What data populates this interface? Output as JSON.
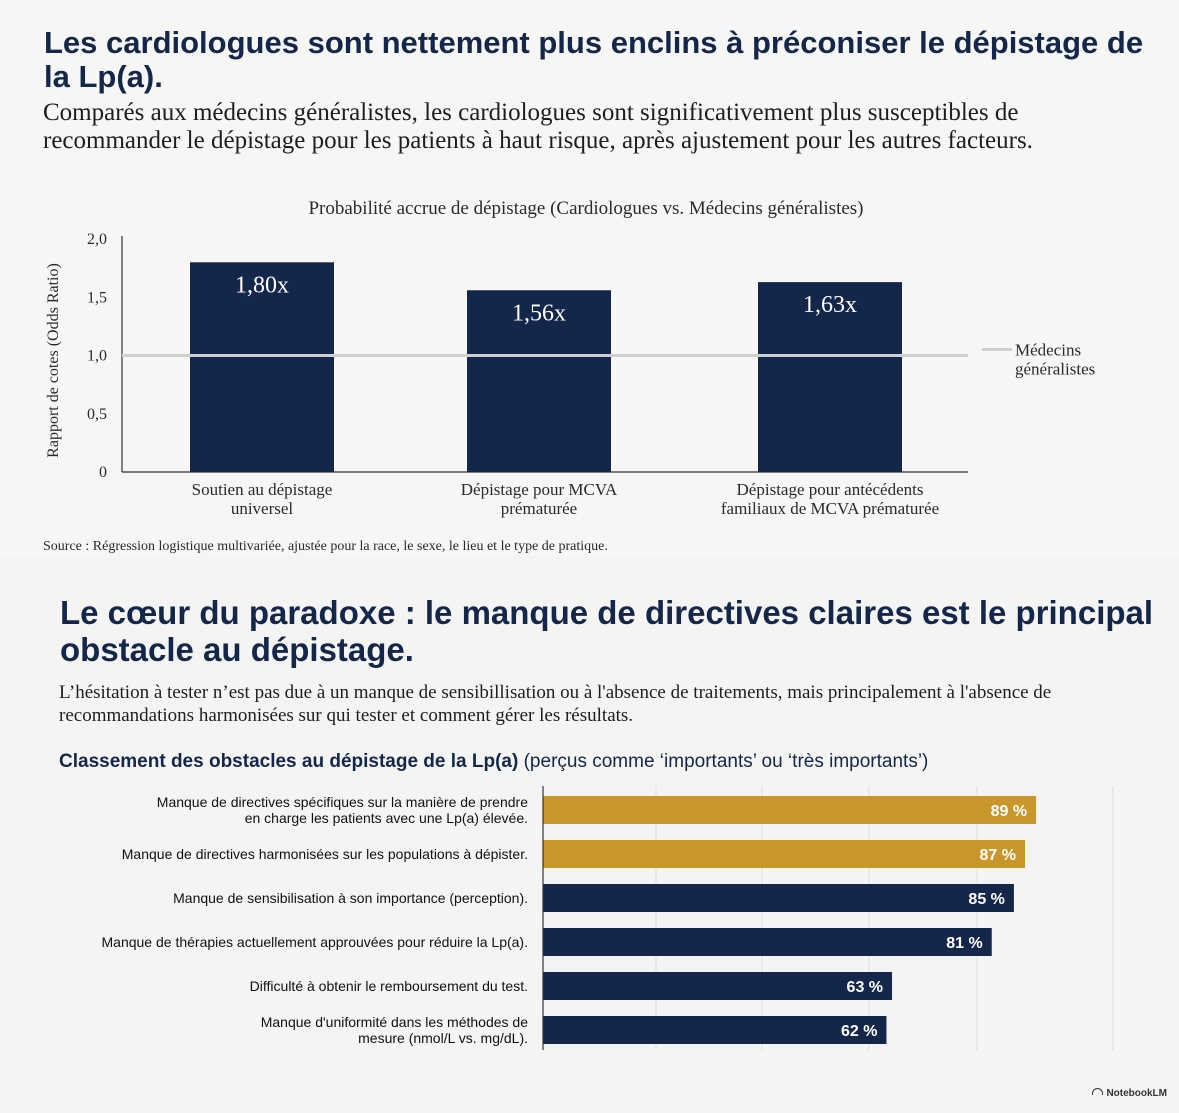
{
  "panel1": {
    "title": "Les cardiologues sont nettement plus enclins à préconiser le dépistage de la Lp(a).",
    "subtitle": "Comparés aux médecins généralistes, les cardiologues sont significativement plus susceptibles de recommander le dépistage pour les patients à haut risque, après ajustement pour les autres facteurs.",
    "source": "Source : Régression logistique multivariée, ajustée pour la race, le sexe, le lieu et le type de pratique."
  },
  "panel2": {
    "title": "Le cœur du paradoxe : le manque de directives claires est le principal obstacle au dépistage.",
    "subtitle": "L’hésitation à tester n’est pas due à un manque de sensibillisation ou à l'absence de traitements, mais principalement à l'absence de recommandations harmonisées sur qui tester et comment gérer les résultats.",
    "chart_title": "Classement des obstacles au dépistage de la Lp(a)",
    "chart_subtitle": "(perçus comme ‘importants’ ou ‘très importants’)"
  },
  "brand": "NotebookLM",
  "colors": {
    "navy": "#14264a",
    "gold": "#c9962b",
    "reference": "#cfcfcf"
  },
  "chart_data": [
    {
      "type": "bar",
      "title": "Probabilité accrue de dépistage (Cardiologues vs. Médecins généralistes)",
      "ylabel": "Rapport de cotes (Odds Ratio)",
      "xlabel": "",
      "categories": [
        [
          "Soutien au dépistage",
          "universel"
        ],
        [
          "Dépistage pour MCVA",
          "prématurée"
        ],
        [
          "Dépistage pour antécédents",
          "familiaux de MCVA prématurée"
        ]
      ],
      "values": [
        1.8,
        1.56,
        1.63
      ],
      "value_labels": [
        "1,80x",
        "1,56x",
        "1,63x"
      ],
      "ylim": [
        0,
        2.0
      ],
      "yticks": [
        0,
        0.5,
        1.0,
        1.5,
        2.0
      ],
      "ytick_labels": [
        "0",
        "0,5",
        "1,0",
        "1,5",
        "2,0"
      ],
      "reference_line": {
        "value": 1.0,
        "label": [
          "Médecins",
          "généralistes"
        ]
      },
      "grid": false
    },
    {
      "type": "bar",
      "orientation": "horizontal",
      "title": "Classement des obstacles au dépistage de la Lp(a) (perçus comme ‘importants’ ou ‘très importants’)",
      "categories": [
        [
          "Manque de directives spécifiques sur la manière de prendre",
          "en charge les patients avec une Lp(a) élevée."
        ],
        [
          "Manque de directives harmonisées sur les populations à dépister."
        ],
        [
          "Manque de sensibilisation à son importance (perception)."
        ],
        [
          "Manque de thérapies actuellement approuvées pour réduire la Lp(a)."
        ],
        [
          "Difficulté à obtenir le remboursement du test."
        ],
        [
          "Manque d'uniformité dans les méthodes de",
          "mesure (nmol/L vs. mg/dL)."
        ]
      ],
      "values": [
        89,
        87,
        85,
        81,
        63,
        62
      ],
      "value_labels": [
        "89 %",
        "87 %",
        "85 %",
        "81 %",
        "63 %",
        "62 %"
      ],
      "highlight": [
        true,
        true,
        false,
        false,
        false,
        false
      ],
      "xlim": [
        0,
        96
      ],
      "unit": "%",
      "grid": true
    }
  ]
}
